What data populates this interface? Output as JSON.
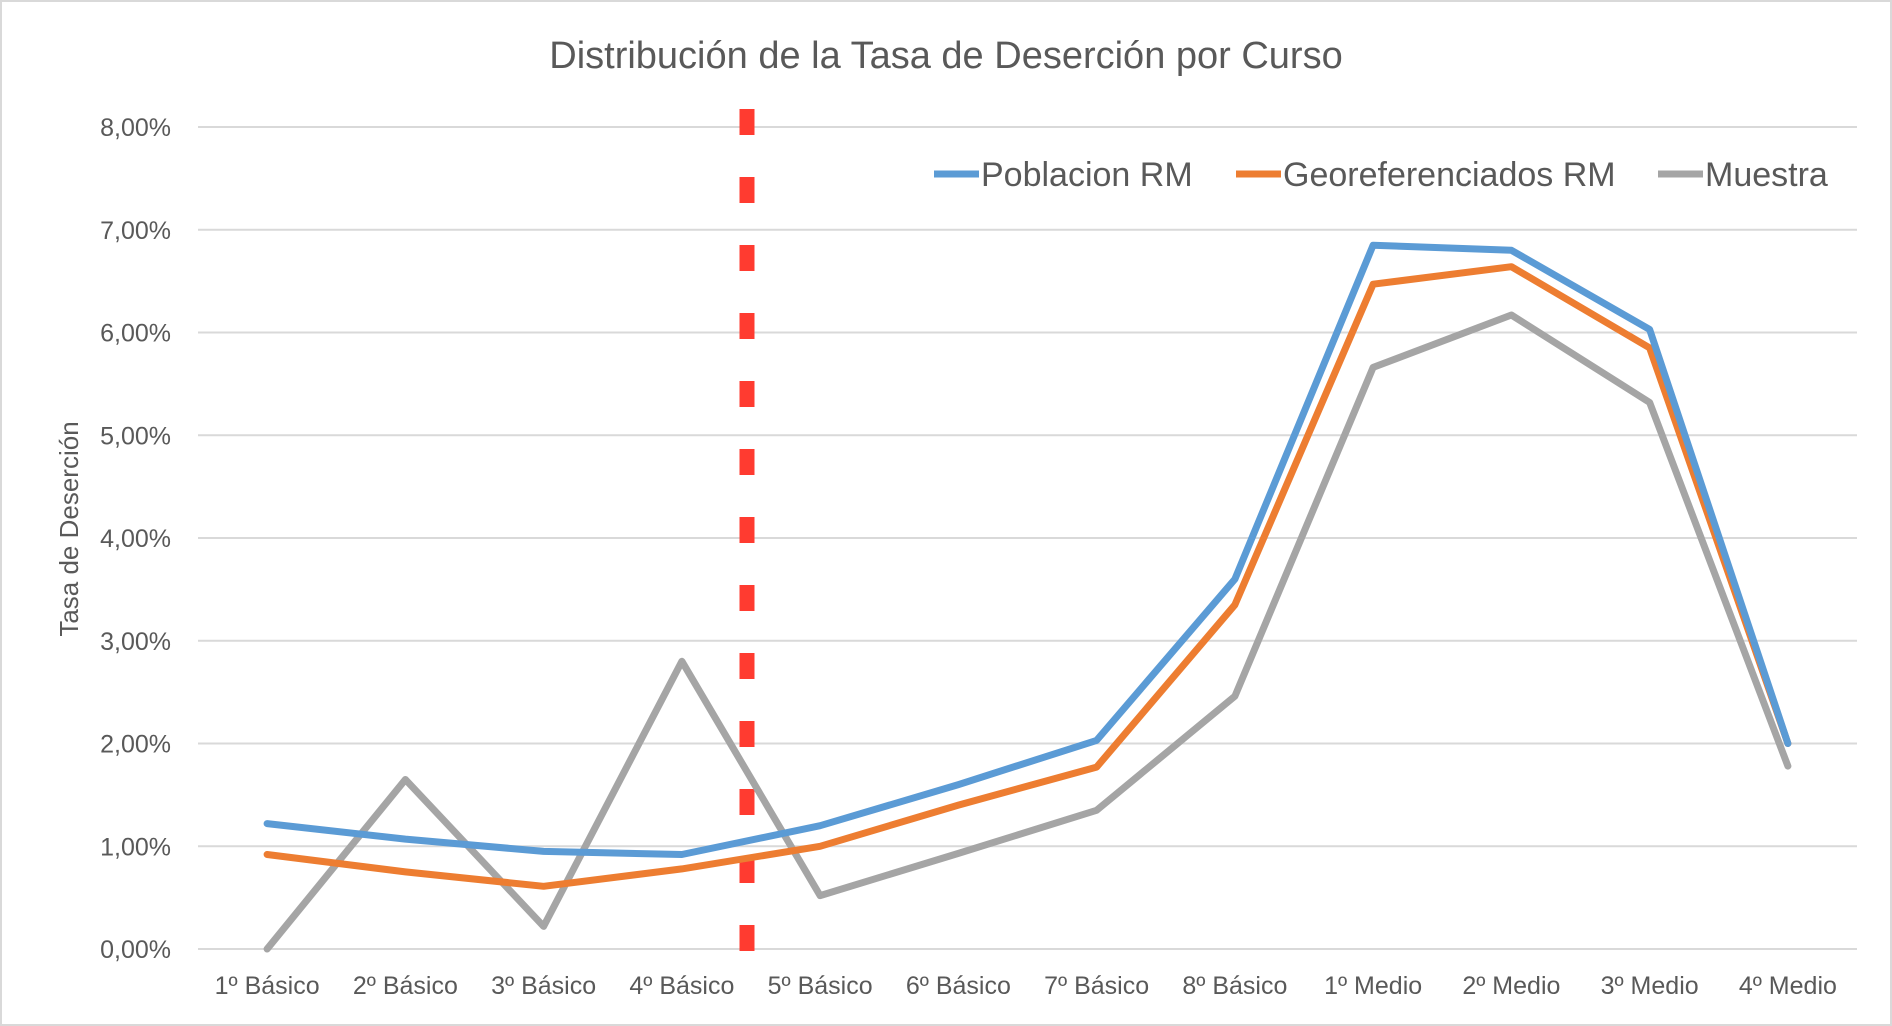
{
  "chart_data": {
    "type": "line",
    "title": "Distribución de la Tasa de Deserción por Curso",
    "xlabel": "",
    "ylabel": "Tasa de Deserción",
    "ylim": [
      0,
      8
    ],
    "yticks": [
      "0,00%",
      "1,00%",
      "2,00%",
      "3,00%",
      "4,00%",
      "5,00%",
      "6,00%",
      "7,00%",
      "8,00%"
    ],
    "categories": [
      "1º Básico",
      "2º Básico",
      "3º Básico",
      "4º Básico",
      "5º Básico",
      "6º Básico",
      "7º Básico",
      "8º Básico",
      "1º Medio",
      "2º Medio",
      "3º Medio",
      "4º Medio"
    ],
    "series": [
      {
        "name": "Poblacion RM",
        "color": "#5b9bd5",
        "values": [
          1.22,
          1.07,
          0.95,
          0.92,
          1.2,
          1.6,
          2.03,
          3.6,
          6.85,
          6.8,
          6.03,
          2.0
        ]
      },
      {
        "name": "Georeferenciados RM",
        "color": "#ed7d31",
        "values": [
          0.92,
          0.75,
          0.61,
          0.78,
          1.0,
          1.4,
          1.77,
          3.35,
          6.47,
          6.64,
          5.85,
          2.0
        ]
      },
      {
        "name": "Muestra",
        "color": "#a5a5a5",
        "values": [
          0.0,
          1.65,
          0.22,
          2.8,
          0.52,
          0.93,
          1.35,
          2.46,
          5.66,
          6.17,
          5.32,
          1.78
        ]
      }
    ],
    "marker_line": {
      "after_category": "4º Básico",
      "color": "#ff3b30",
      "style": "dashed"
    },
    "grid": true,
    "legend_position": "top-right"
  }
}
